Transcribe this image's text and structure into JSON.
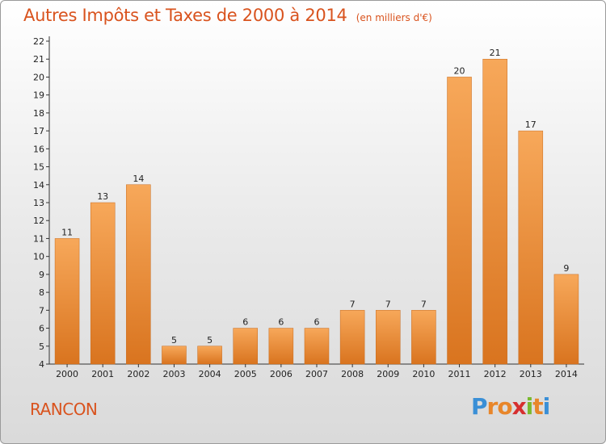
{
  "chart_data": {
    "type": "bar",
    "title": "Autres Impôts et Taxes de 2000 à 2014",
    "subtitle": "(en milliers d'€)",
    "categories": [
      "2000",
      "2001",
      "2002",
      "2003",
      "2004",
      "2005",
      "2006",
      "2007",
      "2008",
      "2009",
      "2010",
      "2011",
      "2012",
      "2013",
      "2014"
    ],
    "values": [
      11,
      13,
      14,
      5,
      5,
      6,
      6,
      6,
      7,
      7,
      7,
      20,
      21,
      17,
      9
    ],
    "ylim": [
      4,
      22
    ],
    "yticks": [
      4,
      5,
      6,
      7,
      8,
      9,
      10,
      11,
      12,
      13,
      14,
      15,
      16,
      17,
      18,
      19,
      20,
      21,
      22
    ],
    "xlabel": "",
    "ylabel": "",
    "grid": false,
    "bar_color": "#f0902f"
  },
  "footer": {
    "commune": "RANCON",
    "brand": [
      "P",
      "r",
      "o",
      "x",
      "i",
      "t",
      "i"
    ],
    "brand_colors": [
      "#3a8fd6",
      "#e8862a",
      "#e8862a",
      "#d62f2f",
      "#7ab92e",
      "#e8862a",
      "#3a8fd6"
    ]
  }
}
